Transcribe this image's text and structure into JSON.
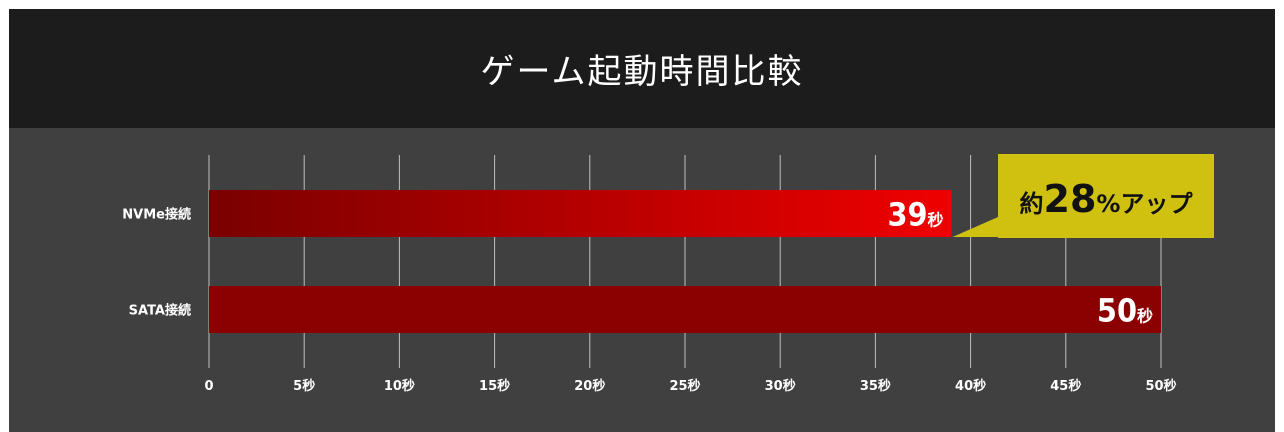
{
  "chart_data": {
    "type": "bar",
    "orientation": "horizontal",
    "title": "ゲーム起動時間比較",
    "categories": [
      "NVMe接続",
      "SATA接続"
    ],
    "values": [
      39,
      50
    ],
    "value_labels": [
      {
        "number": "39",
        "unit": "秒"
      },
      {
        "number": "50",
        "unit": "秒"
      }
    ],
    "x_ticks": [
      "0",
      "5秒",
      "10秒",
      "15秒",
      "20秒",
      "25秒",
      "30秒",
      "35秒",
      "40秒",
      "45秒",
      "50秒"
    ],
    "xlim": [
      0,
      50
    ],
    "grid": true,
    "callout": {
      "prefix": "約",
      "number": "28",
      "suffix": "%アップ"
    },
    "colors": {
      "header_bg": "#1c1c1c",
      "plot_bg": "#404040",
      "bar_nvme_start": "#7a0000",
      "bar_nvme_end": "#f00000",
      "bar_sata": "#8b0000",
      "callout_bg": "#d0c010",
      "grid": "#bfbfbf"
    }
  }
}
